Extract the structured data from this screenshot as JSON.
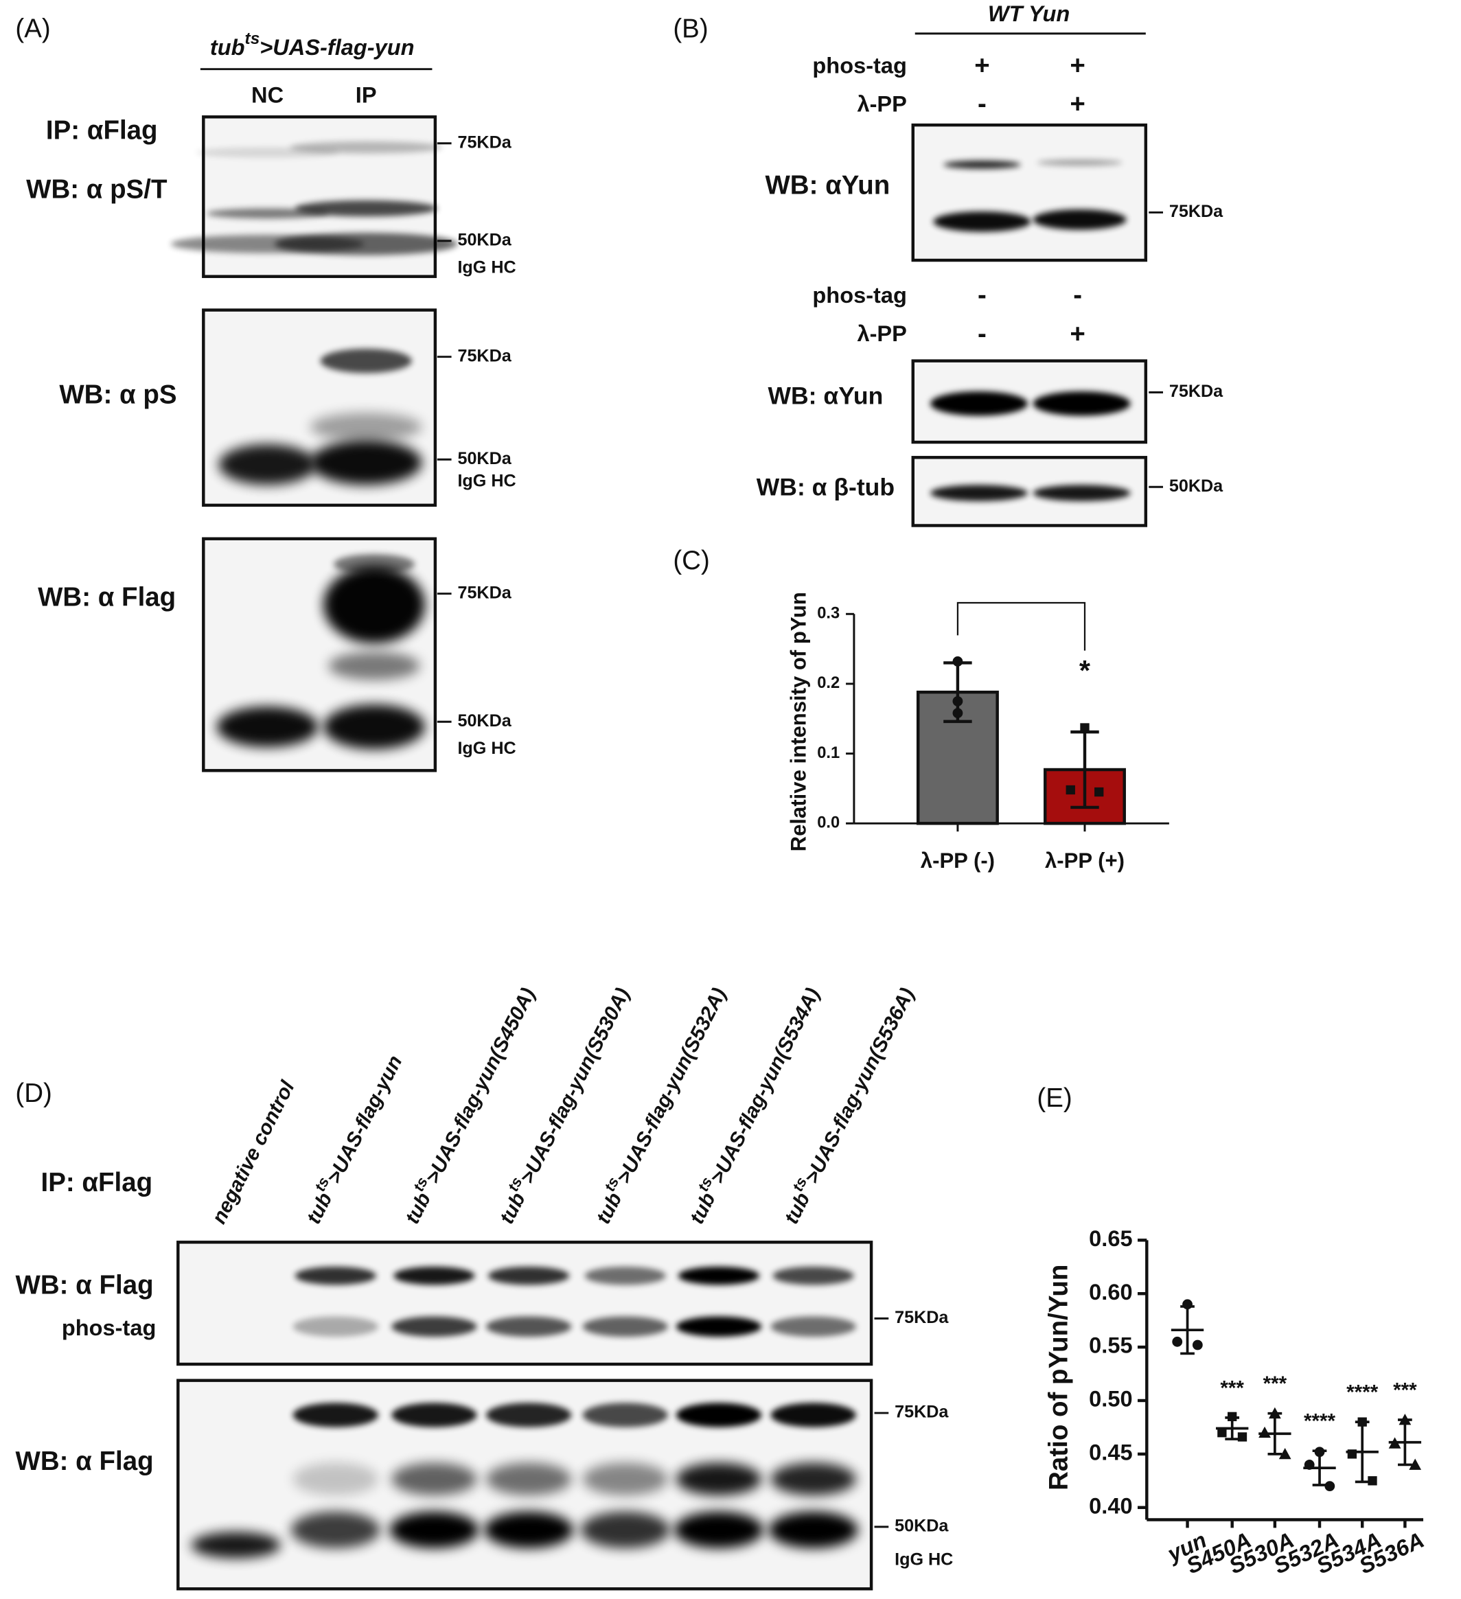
{
  "panels": {
    "A": {
      "label": "(A)",
      "header": {
        "base": "tub",
        "sup": "ts",
        "rest": ">UAS-flag-yun"
      },
      "lanes": [
        "NC",
        "IP"
      ],
      "blots": [
        {
          "labels": [
            "IP: αFlag",
            "WB: α pS/T"
          ],
          "markers": [
            "75KDa",
            "50KDa",
            "IgG HC"
          ]
        },
        {
          "labels": [
            "WB: α pS"
          ],
          "markers": [
            "75KDa",
            "50KDa",
            "IgG HC"
          ]
        },
        {
          "labels": [
            "WB: α Flag"
          ],
          "markers": [
            "75KDa",
            "50KDa",
            "IgG HC"
          ]
        }
      ]
    },
    "B": {
      "label": "(B)",
      "header": "WT Yun",
      "top_rows": [
        {
          "name": "phos-tag",
          "lanes": [
            "+",
            "+"
          ]
        },
        {
          "name": "λ-PP",
          "lanes": [
            "-",
            "+"
          ]
        }
      ],
      "top_blot": {
        "label": "WB: αYun",
        "marker": "75KDa"
      },
      "bottom_rows": [
        {
          "name": "phos-tag",
          "lanes": [
            "-",
            "-"
          ]
        },
        {
          "name": "λ-PP",
          "lanes": [
            "-",
            "+"
          ]
        }
      ],
      "bottom_blots": [
        {
          "label": "WB: αYun",
          "marker": "75KDa"
        },
        {
          "label": "WB: α β-tub",
          "marker": "50KDa"
        }
      ]
    },
    "C": {
      "label": "(C)"
    },
    "D": {
      "label": "(D)",
      "ip": "IP: αFlag",
      "negative_lane": "negative control",
      "lanes": [
        {
          "base": "tub",
          "sup": "ts",
          "rest": ">UAS-flag-yun"
        },
        {
          "base": "tub",
          "sup": "ts",
          "rest": ">UAS-flag-yun(S450A)"
        },
        {
          "base": "tub",
          "sup": "ts",
          "rest": ">UAS-flag-yun(S530A)"
        },
        {
          "base": "tub",
          "sup": "ts",
          "rest": ">UAS-flag-yun(S532A)"
        },
        {
          "base": "tub",
          "sup": "ts",
          "rest": ">UAS-flag-yun(S534A)"
        },
        {
          "base": "tub",
          "sup": "ts",
          "rest": ">UAS-flag-yun(S536A)"
        }
      ],
      "blots": [
        {
          "labels": [
            "WB: α Flag",
            "phos-tag"
          ],
          "markers": [
            "75KDa"
          ]
        },
        {
          "labels": [
            "WB: α Flag"
          ],
          "markers": [
            "75KDa",
            "50KDa",
            "IgG HC"
          ]
        }
      ]
    },
    "E": {
      "label": "(E)"
    }
  },
  "chart_data": [
    {
      "type": "bar",
      "y_label": "Relative intensity of pYun",
      "categories": [
        "λ-PP (-)",
        "λ-PP (+)"
      ],
      "values": [
        0.188,
        0.077
      ],
      "errors": [
        0.042,
        0.054
      ],
      "points": [
        [
          0.232,
          0.175,
          0.158
        ],
        [
          0.137,
          0.048,
          0.045
        ]
      ],
      "colors": [
        "#666666",
        "#a50d0d"
      ],
      "significance": "*",
      "ylim": [
        0,
        0.3
      ],
      "yticks": [
        {
          "value": 0,
          "label": "0.0"
        },
        0.1,
        0.2,
        0.3
      ]
    },
    {
      "type": "scatter",
      "y_label": "Ratio of pYun/Yun",
      "categories": [
        "yun",
        "S450A",
        "S530A",
        "S532A",
        "S534A",
        "S536A"
      ],
      "points": [
        [
          0.59,
          0.555,
          0.552
        ],
        [
          0.485,
          0.47,
          0.466
        ],
        [
          0.488,
          0.47,
          0.45
        ],
        [
          0.452,
          0.44,
          0.42
        ],
        [
          0.48,
          0.45,
          0.425
        ],
        [
          0.482,
          0.46,
          0.44
        ]
      ],
      "means": [
        0.566,
        0.474,
        0.469,
        0.437,
        0.452,
        0.461
      ],
      "sds": [
        0.022,
        0.01,
        0.019,
        0.016,
        0.028,
        0.021
      ],
      "significance": [
        null,
        "***",
        "***",
        "****",
        "****",
        "***"
      ],
      "ylim": [
        0.4,
        0.65
      ],
      "yticks": [
        {
          "value": 0.4,
          "label": "0.40"
        },
        {
          "value": 0.45,
          "label": "0.45"
        },
        {
          "value": 0.5,
          "label": "0.50"
        },
        {
          "value": 0.55,
          "label": "0.55"
        },
        {
          "value": 0.6,
          "label": "0.60"
        },
        {
          "value": 0.65,
          "label": "0.65"
        }
      ]
    }
  ]
}
